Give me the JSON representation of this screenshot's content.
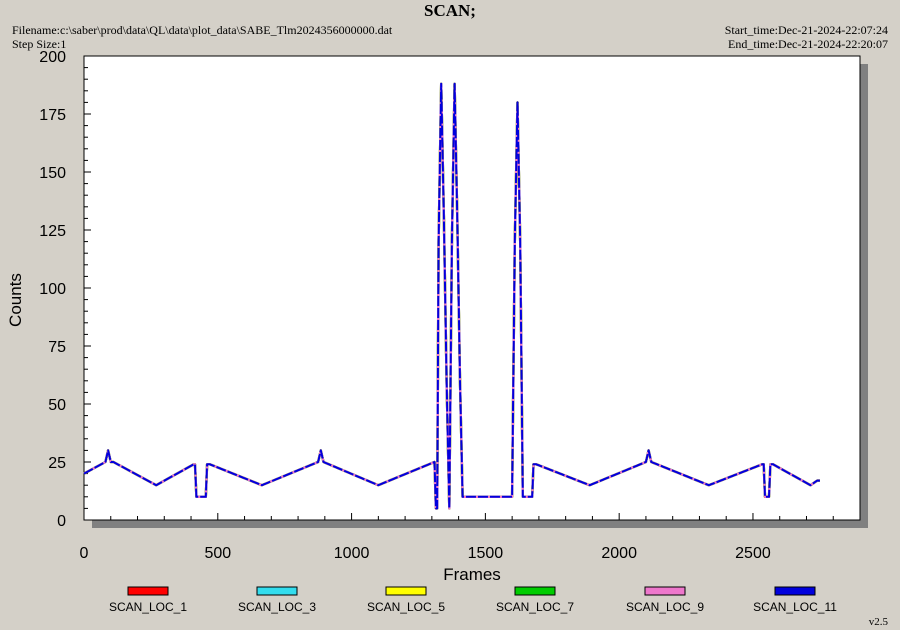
{
  "header": {
    "title": "SCAN;",
    "filename": "Filename:c:\\saber\\prod\\data\\QL\\data\\plot_data\\SABE_Tlm2024356000000.dat",
    "step_size": "Step Size:1",
    "start_time": "Start_time:Dec-21-2024-22:07:24",
    "end_time": "End_time:Dec-21-2024-22:20:07"
  },
  "footer": {
    "version": "v2.5"
  },
  "chart_data": {
    "type": "line",
    "title": "SCAN;",
    "xlabel": "Frames",
    "ylabel": "Counts",
    "xlim": [
      0,
      2900
    ],
    "ylim": [
      0,
      200
    ],
    "xticks": [
      0,
      500,
      1000,
      1500,
      2000,
      2500
    ],
    "yticks": [
      0,
      25,
      50,
      75,
      100,
      125,
      150,
      175,
      200
    ],
    "grid": false,
    "legend_position": "bottom",
    "colors": {
      "SCAN_LOC_1": "#ff0000",
      "SCAN_LOC_3": "#33ddee",
      "SCAN_LOC_5": "#ffff00",
      "SCAN_LOC_7": "#00cc00",
      "SCAN_LOC_9": "#ee77cc",
      "SCAN_LOC_11": "#0000dd"
    },
    "series": [
      {
        "name": "SCAN_LOC_1"
      },
      {
        "name": "SCAN_LOC_3"
      },
      {
        "name": "SCAN_LOC_5"
      },
      {
        "name": "SCAN_LOC_7"
      },
      {
        "name": "SCAN_LOC_9"
      },
      {
        "name": "SCAN_LOC_11"
      }
    ],
    "x": [
      0,
      80,
      90,
      100,
      110,
      270,
      410,
      415,
      420,
      455,
      460,
      470,
      665,
      875,
      885,
      895,
      1100,
      1310,
      1315,
      1320,
      1325,
      1335,
      1345,
      1355,
      1365,
      1375,
      1385,
      1395,
      1405,
      1415,
      1420,
      1430,
      1600,
      1610,
      1620,
      1630,
      1640,
      1645,
      1660,
      1675,
      1680,
      1690,
      1890,
      2100,
      2110,
      2120,
      2335,
      2535,
      2540,
      2545,
      2560,
      2565,
      2575,
      2715,
      2740,
      2750
    ],
    "y": [
      20,
      25,
      30,
      25,
      25,
      15,
      24,
      24,
      10,
      10,
      24,
      24,
      15,
      25,
      30,
      25,
      15,
      25,
      5,
      5,
      120,
      188,
      130,
      60,
      5,
      120,
      188,
      130,
      60,
      10,
      10,
      10,
      10,
      120,
      180,
      120,
      10,
      10,
      10,
      10,
      24,
      24,
      15,
      25,
      30,
      25,
      15,
      24,
      24,
      10,
      10,
      24,
      24,
      15,
      17,
      17
    ]
  }
}
